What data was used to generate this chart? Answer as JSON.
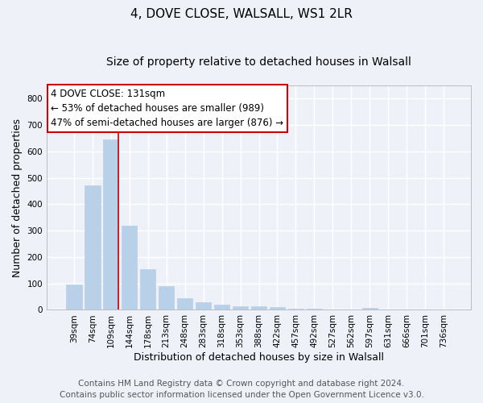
{
  "title": "4, DOVE CLOSE, WALSALL, WS1 2LR",
  "subtitle": "Size of property relative to detached houses in Walsall",
  "xlabel": "Distribution of detached houses by size in Walsall",
  "ylabel": "Number of detached properties",
  "categories": [
    "39sqm",
    "74sqm",
    "109sqm",
    "144sqm",
    "178sqm",
    "213sqm",
    "248sqm",
    "283sqm",
    "318sqm",
    "353sqm",
    "388sqm",
    "422sqm",
    "457sqm",
    "492sqm",
    "527sqm",
    "562sqm",
    "597sqm",
    "631sqm",
    "666sqm",
    "701sqm",
    "736sqm"
  ],
  "values": [
    95,
    470,
    645,
    320,
    155,
    90,
    45,
    28,
    20,
    15,
    13,
    10,
    5,
    3,
    0,
    0,
    7,
    0,
    0,
    0,
    0
  ],
  "bar_color": "#b8d0e8",
  "bar_edge_color": "#b8d0e8",
  "vline_x_index": 2,
  "vline_color": "#cc0000",
  "annotation_line1": "4 DOVE CLOSE: 131sqm",
  "annotation_line2": "← 53% of detached houses are smaller (989)",
  "annotation_line3": "47% of semi-detached houses are larger (876) →",
  "annotation_box_color": "#ffffff",
  "annotation_box_edge": "#cc0000",
  "ylim": [
    0,
    850
  ],
  "yticks": [
    0,
    100,
    200,
    300,
    400,
    500,
    600,
    700,
    800
  ],
  "background_color": "#eef2f8",
  "grid_color": "#ffffff",
  "footer_line1": "Contains HM Land Registry data © Crown copyright and database right 2024.",
  "footer_line2": "Contains public sector information licensed under the Open Government Licence v3.0.",
  "title_fontsize": 11,
  "subtitle_fontsize": 10,
  "xlabel_fontsize": 9,
  "ylabel_fontsize": 9,
  "tick_fontsize": 7.5,
  "annotation_fontsize": 8.5,
  "footer_fontsize": 7.5
}
